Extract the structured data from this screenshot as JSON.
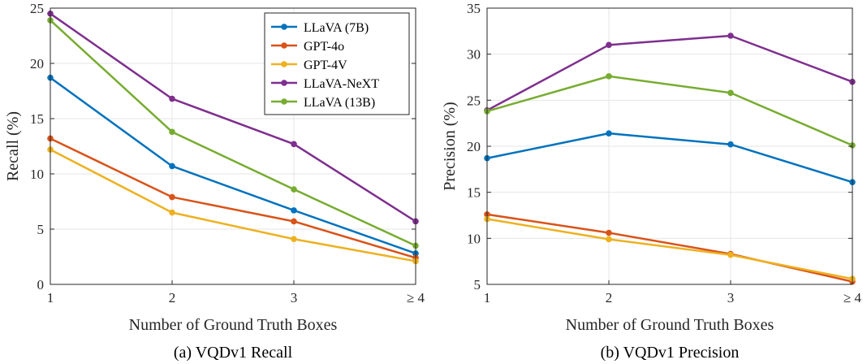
{
  "chart_data": [
    {
      "type": "line",
      "caption": "(a) VQDv1 Recall",
      "xlabel": "Number of Ground Truth Boxes",
      "ylabel": "Recall (%)",
      "categories": [
        "1",
        "2",
        "3",
        "≥ 4"
      ],
      "ylim": [
        0,
        25
      ],
      "yticks": [
        0,
        5,
        10,
        15,
        20,
        25
      ],
      "grid": true,
      "legend": "top-right",
      "series": [
        {
          "name": "LLaVA (7B)",
          "color": "#0072BD",
          "values": [
            18.7,
            10.7,
            6.7,
            2.8
          ]
        },
        {
          "name": "GPT-4o",
          "color": "#D95319",
          "values": [
            13.2,
            7.9,
            5.7,
            2.4
          ]
        },
        {
          "name": "GPT-4V",
          "color": "#EDB120",
          "values": [
            12.2,
            6.5,
            4.1,
            2.1
          ]
        },
        {
          "name": "LLaVA-NeXT",
          "color": "#7E2F8E",
          "values": [
            24.5,
            16.8,
            12.7,
            5.7
          ]
        },
        {
          "name": "LLaVA (13B)",
          "color": "#77AC30",
          "values": [
            23.9,
            13.8,
            8.6,
            3.5
          ]
        }
      ]
    },
    {
      "type": "line",
      "caption": "(b) VQDv1 Precision",
      "xlabel": "Number of Ground Truth Boxes",
      "ylabel": "Precision (%)",
      "categories": [
        "1",
        "2",
        "3",
        "≥ 4"
      ],
      "ylim": [
        5,
        35
      ],
      "yticks": [
        5,
        10,
        15,
        20,
        25,
        30,
        35
      ],
      "grid": true,
      "legend": "none",
      "series": [
        {
          "name": "LLaVA (7B)",
          "color": "#0072BD",
          "values": [
            18.7,
            21.4,
            20.2,
            16.1
          ]
        },
        {
          "name": "GPT-4o",
          "color": "#D95319",
          "values": [
            12.6,
            10.6,
            8.3,
            5.3
          ]
        },
        {
          "name": "GPT-4V",
          "color": "#EDB120",
          "values": [
            12.1,
            9.9,
            8.2,
            5.6
          ]
        },
        {
          "name": "LLaVA-NeXT",
          "color": "#7E2F8E",
          "values": [
            23.9,
            31.0,
            32.0,
            27.0
          ]
        },
        {
          "name": "LLaVA (13B)",
          "color": "#77AC30",
          "values": [
            23.8,
            27.6,
            25.8,
            20.1
          ]
        }
      ]
    }
  ]
}
